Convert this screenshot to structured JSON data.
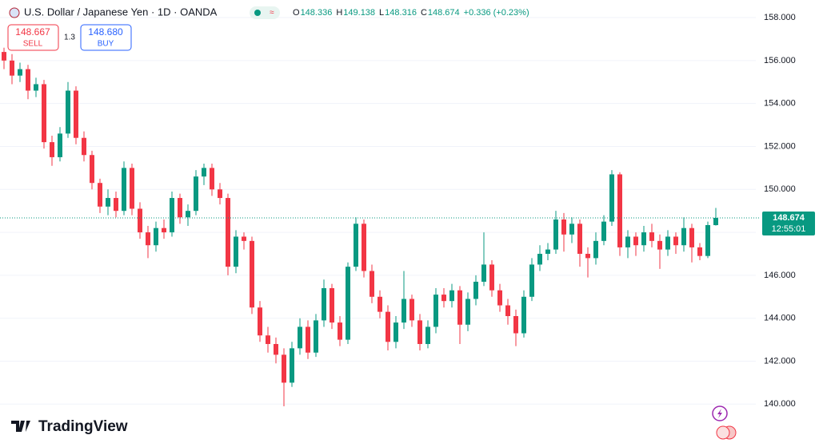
{
  "chart_data": {
    "type": "candlestick",
    "title": "U.S. Dollar / Japanese Yen · 1D · OANDA",
    "ohlc_labels": [
      "O",
      "H",
      "L",
      "C"
    ],
    "change": "+0.336 (+0.23%)",
    "sell_price": "148.667",
    "sell_label": "SELL",
    "buy_price": "148.680",
    "buy_label": "BUY",
    "spread": "1.3",
    "last_price": "148.674",
    "countdown": "12:55:01",
    "brand": "TradingView",
    "up_color": "#089981",
    "down_color": "#f23645",
    "ylim": [
      138.19,
      158.82
    ],
    "yticks": [
      {
        "value": 140,
        "label": "140.000"
      },
      {
        "value": 142,
        "label": "142.000"
      },
      {
        "value": 144,
        "label": "144.000"
      },
      {
        "value": 146,
        "label": "146.000"
      },
      {
        "value": 148,
        "label": "148.000"
      },
      {
        "value": 150,
        "label": "150.000"
      },
      {
        "value": 152,
        "label": "152.000"
      },
      {
        "value": 154,
        "label": "154.000"
      },
      {
        "value": 156,
        "label": "156.000"
      },
      {
        "value": 158,
        "label": "158.000"
      }
    ],
    "grid": true,
    "open": [
      156.4,
      156.0,
      155.3,
      155.6,
      154.6,
      154.9,
      152.2,
      151.5,
      152.6,
      154.6,
      152.4,
      151.6,
      150.3,
      149.2,
      149.6,
      149.0,
      151.0,
      149.1,
      148.0,
      147.4,
      148.2,
      148.0,
      149.6,
      148.7,
      149.0,
      150.6,
      151.0,
      150.0,
      149.6,
      146.4,
      147.8,
      147.6,
      144.5,
      143.2,
      142.8,
      142.3,
      141.0,
      142.6,
      143.6,
      142.4,
      143.9,
      145.4,
      143.8,
      143.0,
      146.4,
      148.4,
      146.2,
      145.0,
      144.3,
      142.9,
      143.8,
      144.9,
      143.9,
      142.8,
      143.6,
      145.1,
      144.8,
      145.3,
      143.7,
      144.9,
      145.7,
      146.5,
      145.3,
      144.6,
      144.1,
      143.3,
      145.0,
      146.5,
      147.0,
      147.2,
      148.6,
      147.9,
      148.4,
      147.0,
      146.8,
      147.6,
      148.5,
      150.7,
      147.3,
      147.8,
      147.4,
      148.0,
      147.6,
      147.2,
      147.8,
      147.4,
      148.2,
      147.3,
      146.9,
      148.336
    ],
    "high": [
      156.6,
      156.3,
      155.9,
      155.8,
      155.2,
      155.1,
      152.5,
      152.9,
      155.0,
      154.8,
      152.7,
      151.8,
      150.5,
      150.0,
      149.9,
      151.3,
      151.2,
      149.4,
      148.3,
      148.5,
      148.6,
      149.9,
      149.8,
      149.3,
      150.9,
      151.2,
      151.2,
      150.3,
      149.8,
      148.1,
      148.0,
      147.8,
      144.8,
      143.6,
      143.1,
      142.6,
      142.9,
      144.0,
      143.9,
      144.2,
      145.8,
      145.6,
      144.1,
      146.6,
      148.7,
      148.6,
      146.5,
      145.3,
      144.6,
      144.1,
      146.2,
      145.1,
      144.2,
      143.9,
      145.4,
      145.4,
      145.6,
      145.5,
      145.2,
      146.0,
      148.0,
      146.7,
      145.6,
      144.9,
      144.4,
      145.3,
      146.8,
      147.4,
      147.5,
      149.0,
      148.9,
      148.7,
      148.6,
      147.3,
      148.0,
      148.8,
      150.9,
      150.8,
      148.1,
      148.0,
      148.3,
      148.4,
      147.9,
      148.1,
      148.0,
      148.7,
      148.4,
      147.5,
      148.5,
      149.138
    ],
    "low": [
      155.6,
      154.9,
      155.0,
      154.2,
      154.3,
      151.9,
      151.1,
      151.3,
      152.4,
      152.1,
      151.3,
      150.0,
      148.9,
      148.8,
      148.7,
      148.8,
      148.8,
      147.7,
      146.8,
      147.1,
      147.7,
      147.8,
      148.4,
      148.3,
      148.8,
      150.2,
      149.7,
      149.3,
      146.0,
      146.1,
      147.2,
      144.2,
      142.9,
      142.4,
      141.9,
      139.9,
      140.8,
      142.3,
      142.1,
      142.2,
      143.6,
      143.5,
      142.7,
      142.8,
      146.2,
      145.9,
      144.7,
      144.0,
      142.5,
      142.6,
      143.5,
      143.6,
      142.5,
      142.6,
      143.3,
      144.5,
      144.5,
      142.8,
      143.4,
      144.6,
      145.5,
      145.0,
      144.3,
      143.7,
      142.7,
      143.1,
      144.8,
      146.2,
      146.7,
      147.0,
      147.1,
      147.5,
      146.4,
      145.9,
      146.5,
      147.4,
      148.3,
      146.9,
      146.8,
      146.9,
      147.1,
      147.3,
      146.3,
      146.9,
      147.0,
      147.1,
      146.6,
      146.7,
      146.8,
      148.316
    ],
    "close": [
      156.0,
      155.3,
      155.6,
      154.6,
      154.9,
      152.2,
      151.5,
      152.6,
      154.6,
      152.4,
      151.6,
      150.3,
      149.2,
      149.6,
      149.0,
      151.0,
      149.1,
      148.0,
      147.4,
      148.2,
      148.0,
      149.6,
      148.7,
      149.0,
      150.6,
      151.0,
      150.0,
      149.6,
      146.4,
      147.8,
      147.6,
      144.5,
      143.2,
      142.8,
      142.3,
      141.0,
      142.6,
      143.6,
      142.4,
      143.9,
      145.4,
      143.8,
      143.0,
      146.4,
      148.4,
      146.2,
      145.0,
      144.3,
      142.9,
      143.8,
      144.9,
      143.9,
      142.8,
      143.6,
      145.1,
      144.8,
      145.3,
      143.7,
      144.9,
      145.7,
      146.5,
      145.3,
      144.6,
      144.1,
      143.3,
      145.0,
      146.5,
      147.0,
      147.2,
      148.6,
      147.9,
      148.4,
      147.0,
      146.8,
      147.6,
      148.5,
      150.7,
      147.3,
      147.8,
      147.4,
      148.0,
      147.6,
      147.2,
      147.8,
      147.4,
      148.2,
      147.3,
      146.9,
      148.338,
      148.674
    ]
  }
}
